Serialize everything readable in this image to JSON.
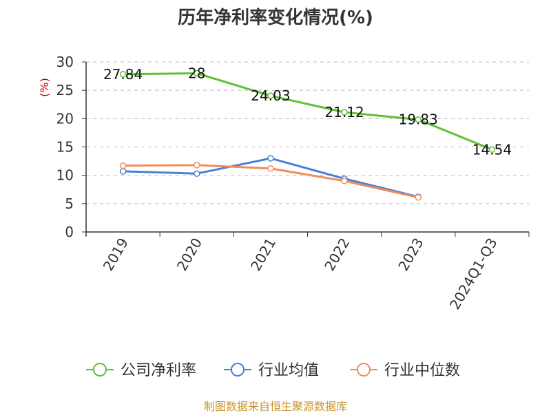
{
  "chart_data": {
    "type": "line",
    "title": "历年净利率变化情况(%)",
    "ylabel": "(%)",
    "xlabel": "",
    "categories": [
      "2019",
      "2020",
      "2021",
      "2022",
      "2023",
      "2024Q1-Q3"
    ],
    "ylim": [
      0,
      30
    ],
    "yticks": [
      "0",
      "5",
      "10",
      "15",
      "20",
      "25",
      "30"
    ],
    "grid": true,
    "legend_position": "bottom",
    "series": [
      {
        "name": "公司净利率",
        "color": "#5cc22f",
        "values": [
          27.84,
          28,
          24.03,
          21.12,
          19.83,
          14.54
        ],
        "labels": [
          "27.84",
          "28",
          "24.03",
          "21.12",
          "19.83",
          "14.54"
        ]
      },
      {
        "name": "行业均值",
        "color": "#4a7fd6",
        "values": [
          10.7,
          10.3,
          13.0,
          9.4,
          6.2,
          null
        ],
        "labels": []
      },
      {
        "name": "行业中位数",
        "color": "#f28c5a",
        "values": [
          11.7,
          11.8,
          11.2,
          9.0,
          6.1,
          null
        ],
        "labels": []
      }
    ]
  },
  "source_text": "制图数据来自恒生聚源数据库"
}
